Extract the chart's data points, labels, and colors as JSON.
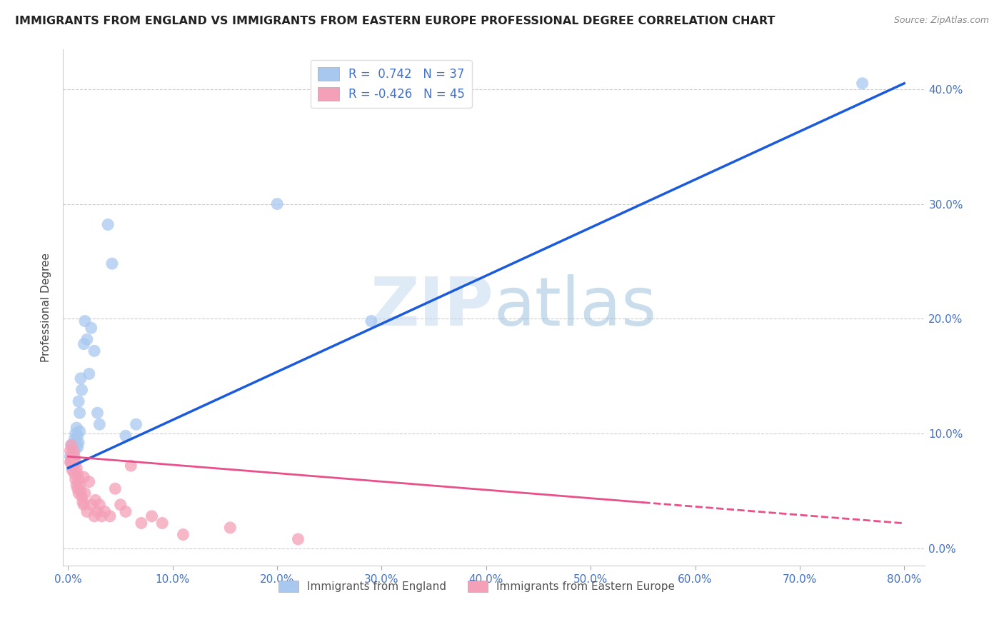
{
  "title": "IMMIGRANTS FROM ENGLAND VS IMMIGRANTS FROM EASTERN EUROPE PROFESSIONAL DEGREE CORRELATION CHART",
  "source": "Source: ZipAtlas.com",
  "xlabel_ticks": [
    0.0,
    0.1,
    0.2,
    0.3,
    0.4,
    0.5,
    0.6,
    0.7,
    0.8
  ],
  "ylabel_ticks": [
    0.0,
    0.1,
    0.2,
    0.3,
    0.4
  ],
  "ylabel": "Professional Degree",
  "legend_bottom": [
    "Immigrants from England",
    "Immigrants from Eastern Europe"
  ],
  "blue_R": 0.742,
  "blue_N": 37,
  "pink_R": -0.426,
  "pink_N": 45,
  "blue_color": "#a8c8f0",
  "pink_color": "#f4a0b8",
  "blue_line_color": "#1a5adc",
  "pink_line_color": "#e8508a",
  "watermark_zip": "ZIP",
  "watermark_atlas": "atlas",
  "blue_line_x0": 0.0,
  "blue_line_y0": 0.07,
  "blue_line_x1": 0.8,
  "blue_line_y1": 0.405,
  "pink_line_x0": 0.0,
  "pink_line_y0": 0.08,
  "pink_line_x1": 0.55,
  "pink_line_y1": 0.04,
  "pink_line_dash_x0": 0.55,
  "pink_line_dash_x1": 0.8,
  "blue_scatter_x": [
    0.002,
    0.003,
    0.003,
    0.004,
    0.004,
    0.005,
    0.005,
    0.006,
    0.006,
    0.006,
    0.007,
    0.007,
    0.008,
    0.008,
    0.009,
    0.009,
    0.01,
    0.01,
    0.011,
    0.011,
    0.012,
    0.013,
    0.015,
    0.016,
    0.018,
    0.02,
    0.022,
    0.025,
    0.028,
    0.03,
    0.038,
    0.042,
    0.055,
    0.065,
    0.2,
    0.29,
    0.76
  ],
  "blue_scatter_y": [
    0.08,
    0.075,
    0.09,
    0.078,
    0.07,
    0.09,
    0.08,
    0.095,
    0.085,
    0.075,
    0.1,
    0.088,
    0.105,
    0.092,
    0.098,
    0.088,
    0.128,
    0.092,
    0.118,
    0.102,
    0.148,
    0.138,
    0.178,
    0.198,
    0.182,
    0.152,
    0.192,
    0.172,
    0.118,
    0.108,
    0.282,
    0.248,
    0.098,
    0.108,
    0.3,
    0.198,
    0.405
  ],
  "pink_scatter_x": [
    0.002,
    0.002,
    0.003,
    0.003,
    0.004,
    0.004,
    0.005,
    0.005,
    0.006,
    0.006,
    0.007,
    0.007,
    0.008,
    0.008,
    0.009,
    0.009,
    0.01,
    0.01,
    0.011,
    0.012,
    0.013,
    0.014,
    0.015,
    0.015,
    0.016,
    0.018,
    0.02,
    0.022,
    0.025,
    0.026,
    0.028,
    0.03,
    0.032,
    0.035,
    0.04,
    0.045,
    0.05,
    0.055,
    0.06,
    0.07,
    0.08,
    0.09,
    0.11,
    0.155,
    0.22
  ],
  "pink_scatter_y": [
    0.085,
    0.075,
    0.09,
    0.078,
    0.075,
    0.068,
    0.085,
    0.072,
    0.08,
    0.065,
    0.075,
    0.06,
    0.07,
    0.055,
    0.065,
    0.052,
    0.06,
    0.048,
    0.055,
    0.05,
    0.045,
    0.04,
    0.062,
    0.038,
    0.048,
    0.032,
    0.058,
    0.038,
    0.028,
    0.042,
    0.032,
    0.038,
    0.028,
    0.032,
    0.028,
    0.052,
    0.038,
    0.032,
    0.072,
    0.022,
    0.028,
    0.022,
    0.012,
    0.018,
    0.008
  ]
}
